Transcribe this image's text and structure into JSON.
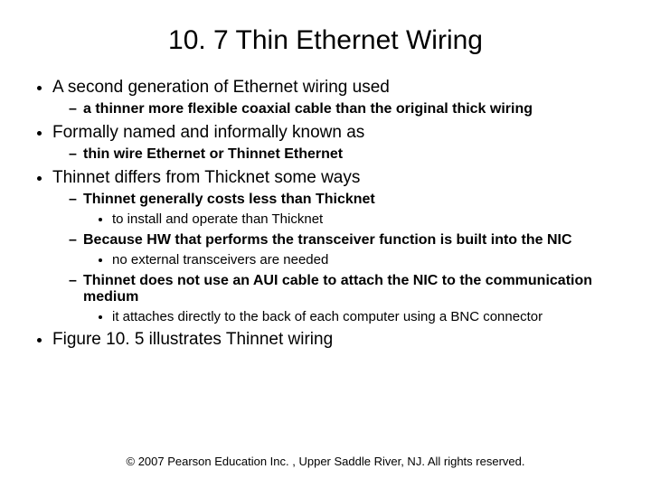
{
  "title": "10. 7 Thin Ethernet Wiring",
  "b1": "A second generation of Ethernet wiring used",
  "b1s1": "a thinner more flexible coaxial cable than the original thick wiring",
  "b2": "Formally named and informally known as",
  "b2s1": "thin wire Ethernet or  Thinnet Ethernet",
  "b3": "Thinnet differs from Thicknet some ways",
  "b3s1": "Thinnet generally costs less than Thicknet",
  "b3s1a": "to install and operate than Thicknet",
  "b3s2": "Because HW that performs the transceiver function is built into the NIC",
  "b3s2a": "no external transceivers are needed",
  "b3s3": "Thinnet does not use an AUI cable to attach the NIC to the communication medium",
  "b3s3a": "it attaches directly to the back of each computer using a  BNC connector",
  "b4": "Figure 10. 5 illustrates Thinnet wiring",
  "footer": "© 2007 Pearson Education Inc. , Upper Saddle River, NJ. All rights reserved."
}
